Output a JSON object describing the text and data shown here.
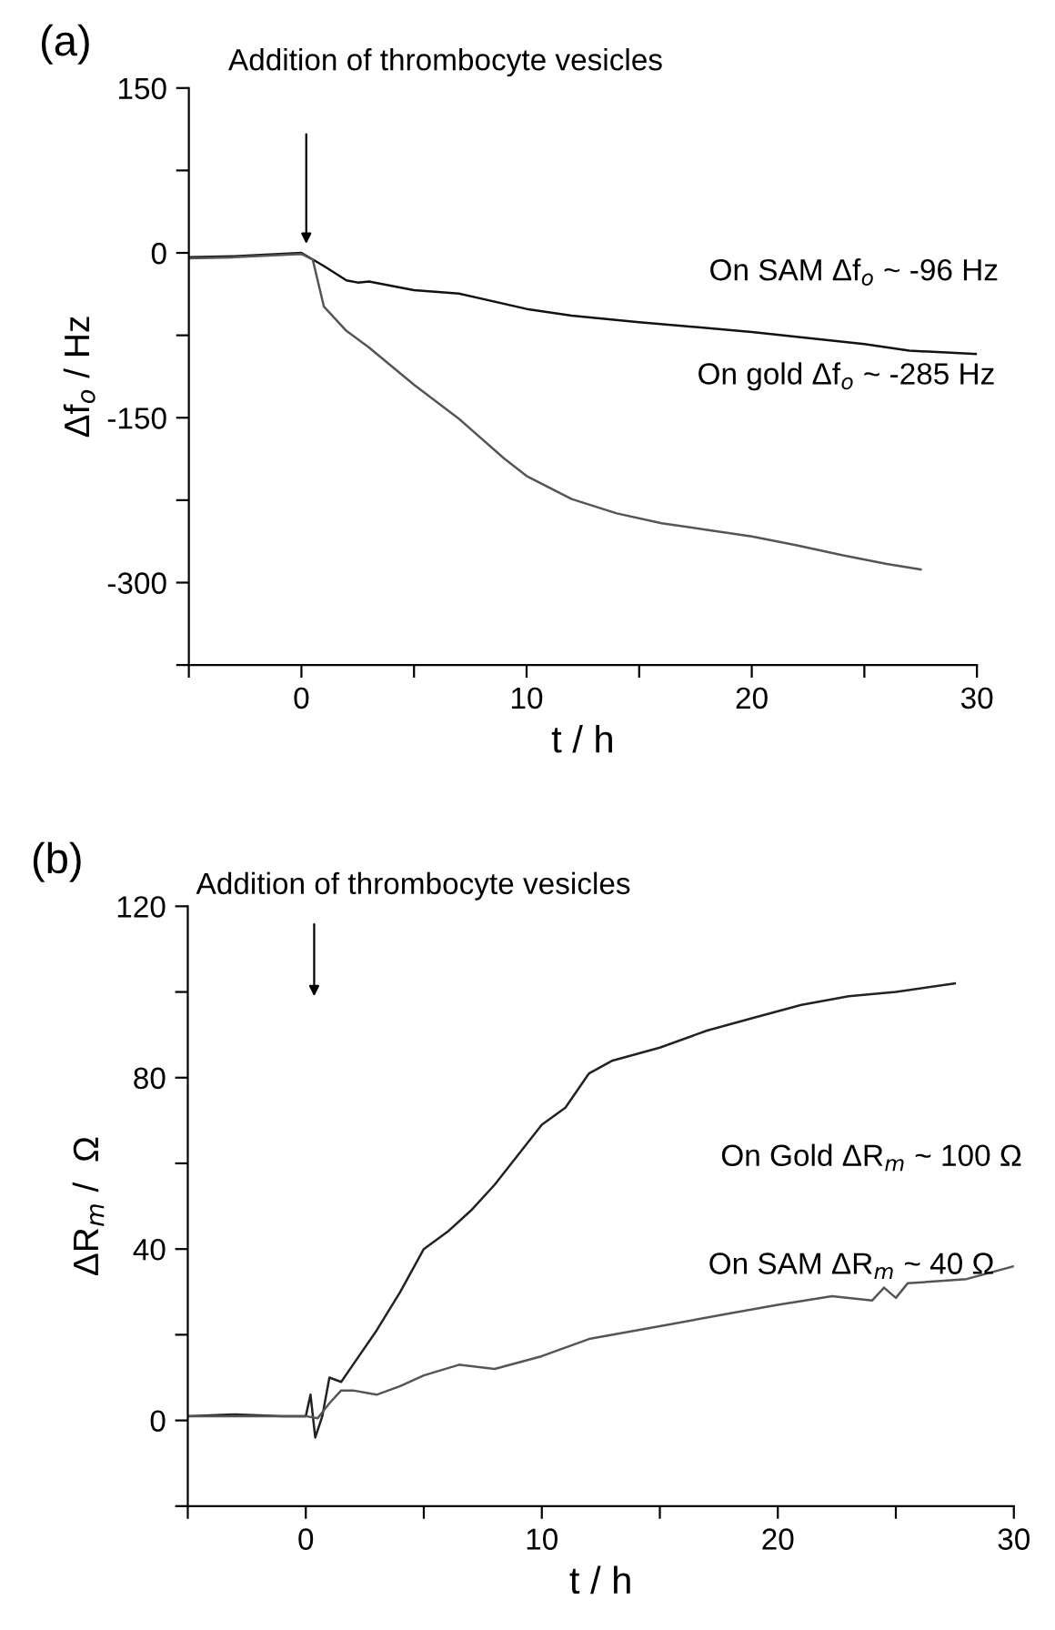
{
  "chart_data": [
    {
      "type": "line",
      "title": "(a)",
      "xlabel": "t / h",
      "ylabel": "Δf$_{o}$ / Hz",
      "xlim": [
        -5,
        30
      ],
      "ylim": [
        -375,
        150
      ],
      "xticks": [
        {
          "value": -5,
          "label": null
        },
        0,
        {
          "value": 5,
          "label": null
        },
        10,
        {
          "value": 15,
          "label": null
        },
        20,
        {
          "value": 25,
          "label": null
        },
        30
      ],
      "yticks": [
        {
          "value": -375,
          "label": null
        },
        -300,
        {
          "value": -225,
          "label": null
        },
        -150,
        {
          "value": -75,
          "label": null
        },
        0,
        {
          "value": 75,
          "label": null
        },
        150
      ],
      "grid": false,
      "legend": false,
      "series": [
        {
          "color": "#111111",
          "x": [
            -5,
            -3,
            0,
            0.5,
            1,
            2,
            2.5,
            3,
            5,
            7,
            10,
            12,
            15,
            20,
            25,
            27,
            30
          ],
          "values": [
            -4,
            -3,
            0,
            -6,
            -12,
            -25,
            -27,
            -26,
            -34,
            -37,
            -51,
            -57,
            -63,
            -72,
            -83,
            -89,
            -92
          ]
        },
        {
          "color": "#555555",
          "x": [
            -5,
            -3,
            0,
            0.5,
            1,
            2,
            3,
            5,
            7,
            9,
            10,
            12,
            14,
            16,
            18,
            20,
            22,
            24,
            26,
            27.5
          ],
          "values": [
            -5,
            -4,
            -1,
            -6,
            -49,
            -71,
            -86,
            -120,
            -151,
            -187,
            -203,
            -224,
            -237,
            -246,
            -252,
            -258,
            -266,
            -275,
            -283,
            -288
          ]
        }
      ],
      "annotations": [
        "Addition of thrombocyte vesicles",
        "On SAM Δf$_{o}$ ~ -96 Hz",
        "On gold Δf$_{o}$ ~ -285 Hz"
      ]
    },
    {
      "type": "line",
      "title": "(b)",
      "xlabel": "t / h",
      "ylabel": "ΔR$_{m}$ /  Ω",
      "xlim": [
        -5,
        30
      ],
      "ylim": [
        -20,
        120
      ],
      "xticks": [
        {
          "value": -5,
          "label": null
        },
        0,
        {
          "value": 5,
          "label": null
        },
        10,
        {
          "value": 15,
          "label": null
        },
        20,
        {
          "value": 25,
          "label": null
        },
        30
      ],
      "yticks": [
        {
          "value": -20,
          "label": null
        },
        0,
        {
          "value": 20,
          "label": null
        },
        40,
        {
          "value": 60,
          "label": null
        },
        80,
        {
          "value": 100,
          "label": null
        },
        120
      ],
      "grid": false,
      "legend": false,
      "series": [
        {
          "color": "#222222",
          "x": [
            -5,
            -3,
            -1,
            0,
            0.2,
            0.4,
            0.7,
            1,
            1.5,
            2,
            3,
            4,
            5,
            6,
            7,
            8,
            9,
            10,
            11,
            12,
            13,
            15,
            17,
            19,
            21,
            23,
            25,
            27.5
          ],
          "values": [
            1,
            1.4,
            1,
            1,
            6,
            -4,
            1,
            10,
            9,
            13,
            21,
            30,
            40,
            44,
            49,
            55,
            62,
            69,
            73,
            81,
            84,
            87,
            91,
            94,
            97,
            99,
            100,
            102
          ]
        },
        {
          "color": "#555555",
          "x": [
            -5,
            0,
            0.5,
            1,
            1.5,
            2,
            3,
            4,
            5,
            6.5,
            8,
            10,
            12,
            15,
            18,
            20,
            22.3,
            24,
            24.5,
            25,
            25.5,
            28,
            30
          ],
          "values": [
            1,
            1,
            0.5,
            4,
            7,
            7,
            6,
            8,
            10.5,
            13,
            12,
            15,
            19,
            22,
            25,
            27,
            29,
            28,
            31,
            28.6,
            32,
            33,
            36
          ]
        }
      ],
      "annotations": [
        "Addition of thrombocyte vesicles",
        "On Gold ΔR$_{m}$ ~ 100 Ω",
        "On SAM ΔR$_{m}$ ~ 40 Ω"
      ]
    }
  ]
}
